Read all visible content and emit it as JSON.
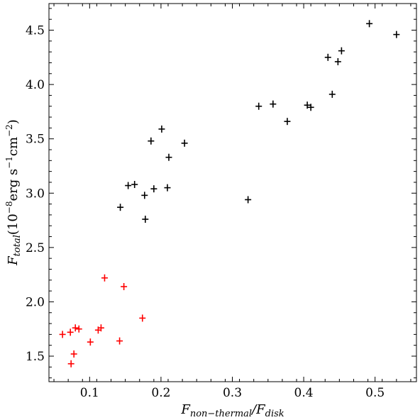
{
  "chart_data": {
    "type": "scatter",
    "title": "",
    "xlabel": {
      "main": "F",
      "sub1": "non−thermal",
      "sep": "/F",
      "sub2": "disk"
    },
    "ylabel": {
      "main": "F",
      "sub": "total",
      "unit_a": "(10",
      "exp1": "−8",
      "unit_b": "erg s",
      "exp2": "−1",
      "unit_c": "cm",
      "exp3": "−2",
      "unit_d": ")"
    },
    "xlim": [
      0.043,
      0.558
    ],
    "ylim": [
      1.265,
      4.745
    ],
    "x_ticks": [
      "0.1",
      "0.2",
      "0.3",
      "0.4",
      "0.5"
    ],
    "y_ticks": [
      "1.5",
      "2.0",
      "2.5",
      "3.0",
      "3.5",
      "4.0",
      "4.5"
    ],
    "grid": false,
    "series": [
      {
        "color": "#ff0000",
        "marker": "cross",
        "points": [
          [
            0.062,
            1.7
          ],
          [
            0.073,
            1.72
          ],
          [
            0.074,
            1.43
          ],
          [
            0.078,
            1.52
          ],
          [
            0.08,
            1.76
          ],
          [
            0.085,
            1.75
          ],
          [
            0.101,
            1.63
          ],
          [
            0.112,
            1.74
          ],
          [
            0.116,
            1.76
          ],
          [
            0.121,
            2.22
          ],
          [
            0.142,
            1.64
          ],
          [
            0.148,
            2.14
          ],
          [
            0.174,
            1.85
          ]
        ]
      },
      {
        "color": "#000000",
        "marker": "cross",
        "points": [
          [
            0.143,
            2.87
          ],
          [
            0.154,
            3.07
          ],
          [
            0.163,
            3.08
          ],
          [
            0.177,
            2.98
          ],
          [
            0.178,
            2.76
          ],
          [
            0.186,
            3.48
          ],
          [
            0.19,
            3.04
          ],
          [
            0.201,
            3.59
          ],
          [
            0.209,
            3.05
          ],
          [
            0.211,
            3.33
          ],
          [
            0.233,
            3.46
          ],
          [
            0.322,
            2.94
          ],
          [
            0.337,
            3.8
          ],
          [
            0.357,
            3.82
          ],
          [
            0.377,
            3.66
          ],
          [
            0.405,
            3.81
          ],
          [
            0.41,
            3.79
          ],
          [
            0.434,
            4.25
          ],
          [
            0.44,
            3.91
          ],
          [
            0.448,
            4.21
          ],
          [
            0.453,
            4.31
          ],
          [
            0.492,
            4.56
          ],
          [
            0.53,
            4.46
          ]
        ]
      }
    ]
  }
}
